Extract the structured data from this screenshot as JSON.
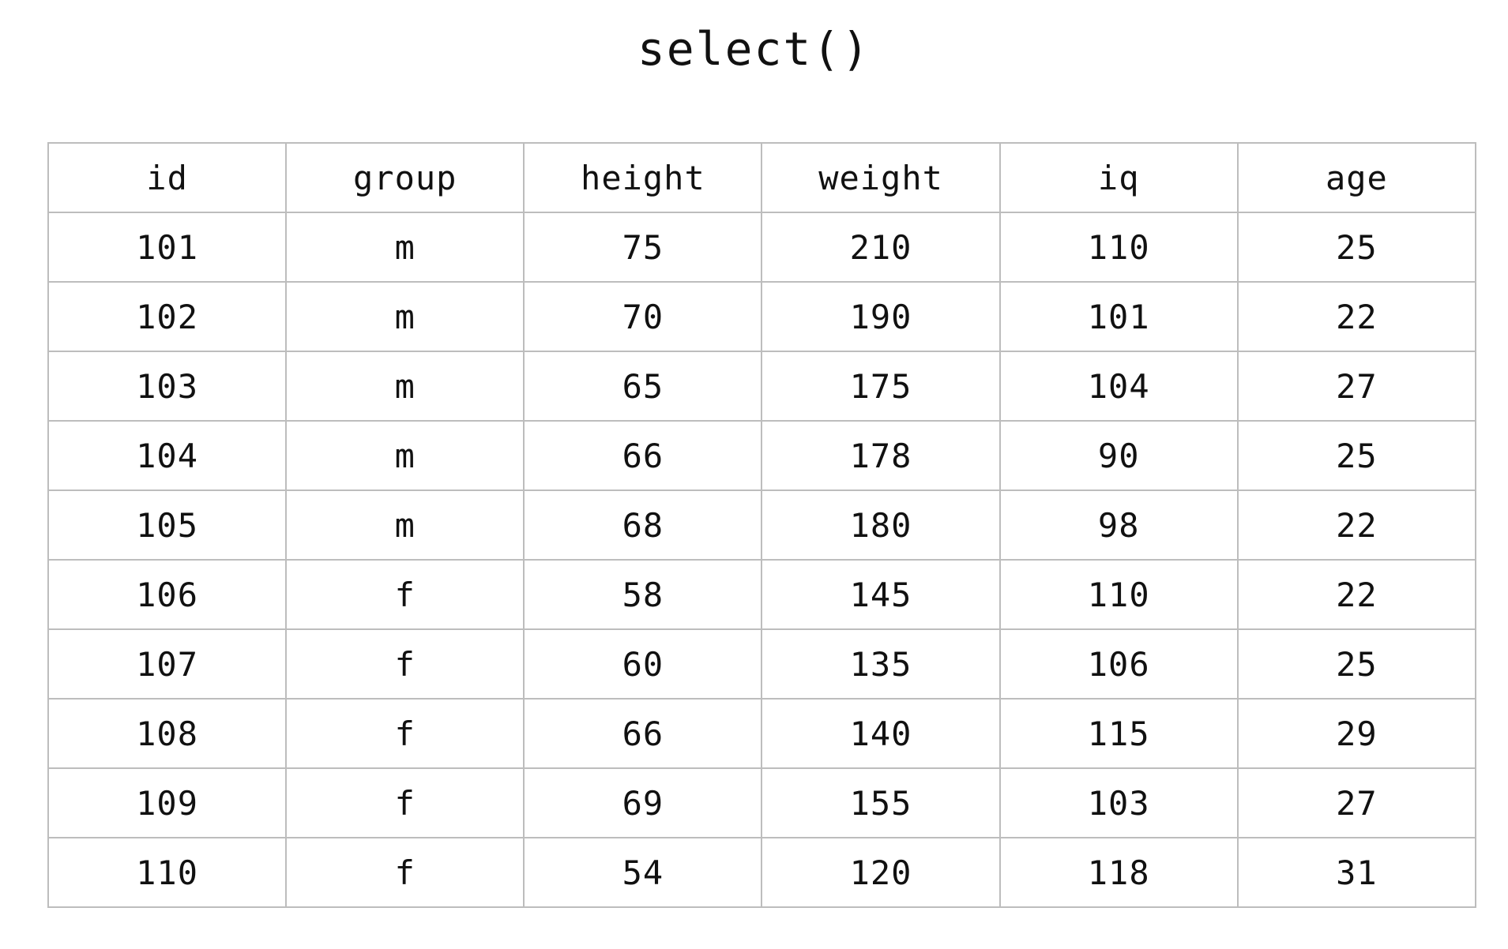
{
  "title": "select()",
  "table": {
    "columns": [
      "id",
      "group",
      "height",
      "weight",
      "iq",
      "age"
    ],
    "rows": [
      [
        "101",
        "m",
        "75",
        "210",
        "110",
        "25"
      ],
      [
        "102",
        "m",
        "70",
        "190",
        "101",
        "22"
      ],
      [
        "103",
        "m",
        "65",
        "175",
        "104",
        "27"
      ],
      [
        "104",
        "m",
        "66",
        "178",
        "90",
        "25"
      ],
      [
        "105",
        "m",
        "68",
        "180",
        "98",
        "22"
      ],
      [
        "106",
        "f",
        "58",
        "145",
        "110",
        "22"
      ],
      [
        "107",
        "f",
        "60",
        "135",
        "106",
        "25"
      ],
      [
        "108",
        "f",
        "66",
        "140",
        "115",
        "29"
      ],
      [
        "109",
        "f",
        "69",
        "155",
        "103",
        "27"
      ],
      [
        "110",
        "f",
        "54",
        "120",
        "118",
        "31"
      ]
    ]
  }
}
